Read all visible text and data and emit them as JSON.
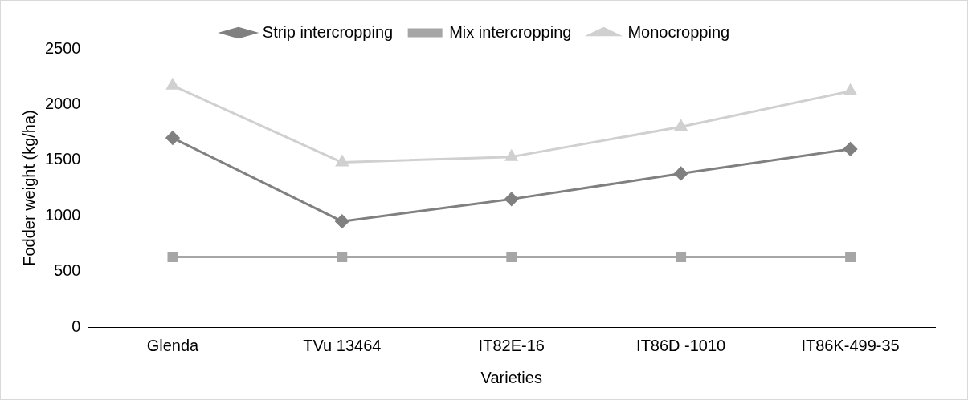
{
  "chart_data": {
    "type": "line",
    "xlabel": "Varieties",
    "ylabel": "Fodder weight (kg/ha)",
    "categories": [
      "Glenda",
      "TVu 13464",
      "IT82E-16",
      "IT86D -1010",
      "IT86K-499-35"
    ],
    "series": [
      {
        "name": "Strip intercropping",
        "color": "#808080",
        "marker": "diamond",
        "values": [
          1700,
          950,
          1150,
          1380,
          1600
        ]
      },
      {
        "name": "Mix intercropping",
        "color": "#a6a6a6",
        "marker": "square",
        "values": [
          630,
          630,
          630,
          630,
          630
        ]
      },
      {
        "name": "Monocropping",
        "color": "#d0d0d0",
        "marker": "triangle",
        "values": [
          2170,
          1480,
          1530,
          1800,
          2120
        ]
      }
    ],
    "ylim": [
      0,
      2500
    ],
    "yticks": [
      0,
      500,
      1000,
      1500,
      2000,
      2500
    ],
    "grid": false,
    "legend": "top",
    "line_style": "solid"
  }
}
